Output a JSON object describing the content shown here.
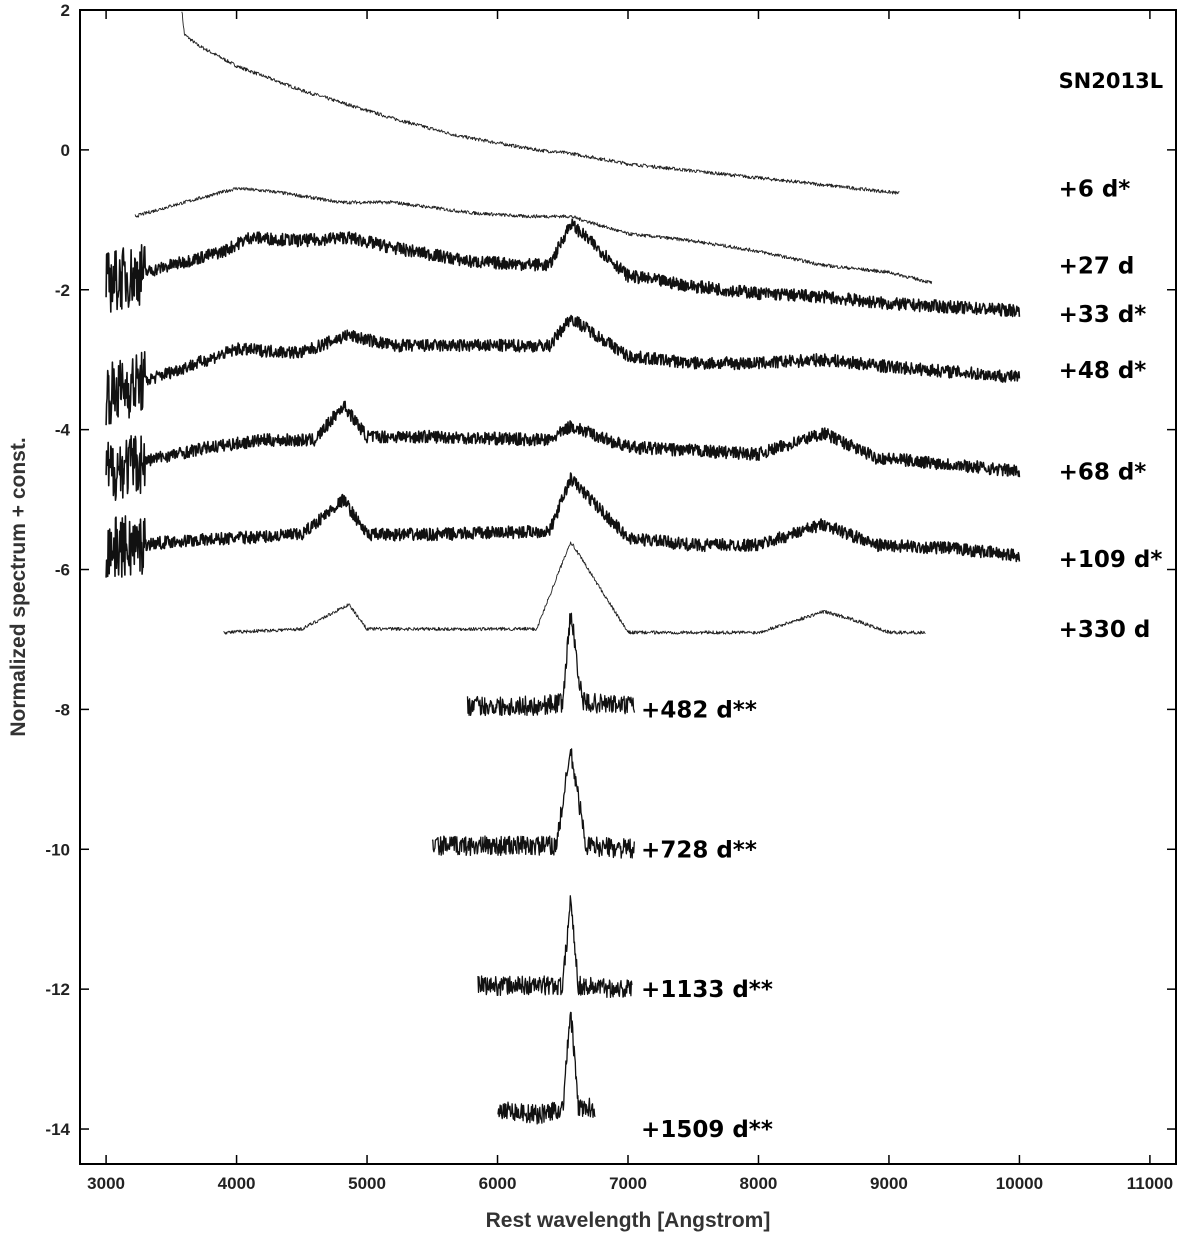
{
  "chart_data": {
    "type": "line",
    "title": "",
    "object_label": "SN2013L",
    "xlabel": "Rest wavelength [Angstrom]",
    "ylabel": "Normalized spectrum + const.",
    "xlim": [
      2800,
      11200
    ],
    "ylim": [
      -14.5,
      2
    ],
    "xticks": [
      3000,
      4000,
      5000,
      6000,
      7000,
      8000,
      9000,
      10000,
      11000
    ],
    "yticks": [
      2,
      0,
      -2,
      -4,
      -6,
      -8,
      -10,
      -12,
      -14
    ],
    "grid": false,
    "series": [
      {
        "name": "+6 d*",
        "x": [
          3580,
          3600,
          3700,
          4000,
          4500,
          4850,
          5200,
          5700,
          6300,
          6560,
          7000,
          7500,
          8000,
          8500,
          9080
        ],
        "y": [
          2.0,
          1.65,
          1.5,
          1.2,
          0.85,
          0.65,
          0.45,
          0.2,
          0.0,
          -0.05,
          -0.2,
          -0.3,
          -0.4,
          -0.5,
          -0.62
        ],
        "label_at": [
          10300,
          -0.55
        ]
      },
      {
        "name": "+27 d",
        "x": [
          3220,
          3500,
          3800,
          4000,
          4300,
          4800,
          5200,
          5800,
          6200,
          6560,
          7000,
          7500,
          8000,
          8500,
          9000,
          9330
        ],
        "y": [
          -0.95,
          -0.8,
          -0.65,
          -0.55,
          -0.6,
          -0.75,
          -0.75,
          -0.9,
          -0.95,
          -0.95,
          -1.2,
          -1.3,
          -1.45,
          -1.65,
          -1.75,
          -1.9
        ],
        "label_at": [
          10300,
          -1.65
        ]
      },
      {
        "name": "+33 d*",
        "x": [
          3000,
          3300,
          3600,
          3900,
          4100,
          4500,
          4850,
          5200,
          5800,
          6400,
          6560,
          7000,
          7500,
          8000,
          8500,
          9000,
          10000
        ],
        "y": [
          -1.9,
          -1.75,
          -1.6,
          -1.45,
          -1.25,
          -1.3,
          -1.25,
          -1.4,
          -1.6,
          -1.65,
          -1.05,
          -1.8,
          -1.95,
          -2.05,
          -2.1,
          -2.2,
          -2.3
        ],
        "label_at": [
          10300,
          -2.35
        ]
      },
      {
        "name": "+48 d*",
        "x": [
          3000,
          3300,
          3700,
          4000,
          4500,
          4850,
          5200,
          6400,
          6560,
          7000,
          7500,
          8000,
          8500,
          9000,
          10000
        ],
        "y": [
          -3.5,
          -3.3,
          -3.05,
          -2.85,
          -2.9,
          -2.65,
          -2.8,
          -2.8,
          -2.4,
          -2.95,
          -3.05,
          -3.05,
          -3.0,
          -3.1,
          -3.25
        ],
        "label_at": [
          10300,
          -3.15
        ]
      },
      {
        "name": "+68 d*",
        "x": [
          3000,
          3400,
          3800,
          4200,
          4600,
          4820,
          5000,
          5500,
          6400,
          6560,
          7000,
          7500,
          8000,
          8500,
          8900,
          9500,
          10000
        ],
        "y": [
          -4.6,
          -4.4,
          -4.25,
          -4.15,
          -4.15,
          -3.65,
          -4.1,
          -4.1,
          -4.15,
          -3.95,
          -4.25,
          -4.3,
          -4.35,
          -4.05,
          -4.4,
          -4.5,
          -4.6
        ],
        "label_at": [
          10300,
          -4.6
        ]
      },
      {
        "name": "+109 d*",
        "x": [
          3000,
          3500,
          4000,
          4500,
          4820,
          5000,
          5500,
          6400,
          6560,
          7000,
          7500,
          8000,
          8500,
          8900,
          9500,
          10000
        ],
        "y": [
          -5.7,
          -5.6,
          -5.55,
          -5.5,
          -5.0,
          -5.5,
          -5.5,
          -5.45,
          -4.7,
          -5.55,
          -5.65,
          -5.65,
          -5.35,
          -5.65,
          -5.7,
          -5.8
        ],
        "label_at": [
          10300,
          -5.85
        ]
      },
      {
        "name": "+330 d",
        "x": [
          3900,
          4500,
          4860,
          5000,
          5500,
          6300,
          6560,
          7000,
          7500,
          8000,
          8500,
          8700,
          9000,
          9280
        ],
        "y": [
          -6.9,
          -6.85,
          -6.5,
          -6.85,
          -6.85,
          -6.85,
          -5.6,
          -6.9,
          -6.9,
          -6.9,
          -6.6,
          -6.7,
          -6.9,
          -6.9
        ],
        "label_at": [
          10300,
          -6.85
        ]
      },
      {
        "name": "+482 d**",
        "x": [
          5770,
          6000,
          6300,
          6500,
          6560,
          6650,
          7050
        ],
        "y": [
          -7.95,
          -7.95,
          -7.95,
          -7.9,
          -6.6,
          -7.9,
          -7.95
        ],
        "label_at": [
          7100,
          -8.0
        ]
      },
      {
        "name": "+728 d**",
        "x": [
          5500,
          6000,
          6450,
          6560,
          6680,
          7050
        ],
        "y": [
          -9.95,
          -9.95,
          -9.95,
          -8.6,
          -9.95,
          -10.0
        ],
        "label_at": [
          7100,
          -10.0
        ]
      },
      {
        "name": "+1133 d**",
        "x": [
          5850,
          6300,
          6500,
          6560,
          6620,
          7030
        ],
        "y": [
          -11.95,
          -11.95,
          -11.95,
          -10.7,
          -11.95,
          -12.0
        ],
        "label_at": [
          7100,
          -12.0
        ]
      },
      {
        "name": "+1509 d**",
        "x": [
          6000,
          6300,
          6500,
          6560,
          6620,
          6750
        ],
        "y": [
          -13.7,
          -13.8,
          -13.7,
          -12.3,
          -13.7,
          -13.7
        ],
        "label_at": [
          7100,
          -14.0
        ]
      }
    ]
  }
}
